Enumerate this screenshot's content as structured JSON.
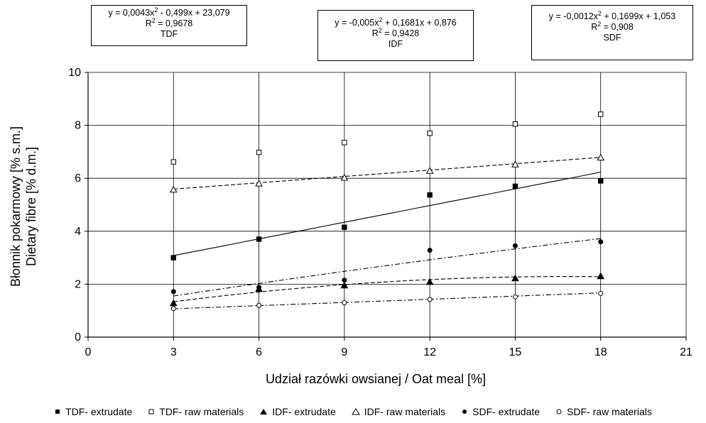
{
  "chart_data": {
    "type": "scatter",
    "xlabel": "Udział razówki owsianej / Oat meal [%]",
    "ylabel_line1": "Błonnik pokarmowy [% s.m.]",
    "ylabel_line2": "Dietary fibre [% d.m.]",
    "xlim": [
      0,
      21
    ],
    "ylim": [
      0,
      10
    ],
    "xticks": [
      "0",
      "3",
      "6",
      "9",
      "12",
      "15",
      "18",
      "21"
    ],
    "yticks": [
      "0",
      "2",
      "4",
      "6",
      "8",
      "10"
    ],
    "grid": true,
    "legend_position": "bottom",
    "series": [
      {
        "name": "TDF- extrudate",
        "marker": "square-filled",
        "x": [
          3,
          6,
          9,
          12,
          15,
          18
        ],
        "y": [
          3.0,
          3.7,
          4.15,
          5.37,
          5.7,
          5.9
        ]
      },
      {
        "name": "TDF- raw materials",
        "marker": "square-open",
        "x": [
          3,
          6,
          9,
          12,
          15,
          18
        ],
        "y": [
          6.62,
          6.98,
          7.35,
          7.7,
          8.05,
          8.42
        ]
      },
      {
        "name": "IDF- extrudate",
        "marker": "triangle-filled",
        "x": [
          3,
          6,
          9,
          12,
          15,
          18
        ],
        "y": [
          1.28,
          1.82,
          1.95,
          2.08,
          2.22,
          2.3
        ]
      },
      {
        "name": "IDF- raw materials",
        "marker": "triangle-open",
        "x": [
          3,
          6,
          9,
          12,
          15,
          18
        ],
        "y": [
          5.57,
          5.8,
          6.02,
          6.28,
          6.52,
          6.78
        ]
      },
      {
        "name": "SDF- extrudate",
        "marker": "circle-filled",
        "x": [
          3,
          6,
          9,
          12,
          15,
          18
        ],
        "y": [
          1.72,
          1.88,
          2.15,
          3.28,
          3.45,
          3.6
        ]
      },
      {
        "name": "SDF- raw materials",
        "marker": "circle-open",
        "x": [
          3,
          6,
          9,
          12,
          15,
          18
        ],
        "y": [
          1.08,
          1.2,
          1.3,
          1.42,
          1.52,
          1.65
        ]
      }
    ],
    "trendlines": [
      {
        "coef": [
          23.079,
          -0.499,
          0.0043
        ],
        "style": "solid"
      },
      {
        "coef": [
          0.876,
          0.1681,
          -0.005
        ],
        "style": "dashed"
      },
      {
        "coef": [
          1.053,
          0.1699,
          -0.0012
        ],
        "style": "dashdot"
      },
      {
        "coef": [
          2.45,
          0.21,
          0.0
        ],
        "style": "solid"
      },
      {
        "coef": [
          5.35,
          0.08,
          0.0
        ],
        "style": "dashed"
      },
      {
        "coef": [
          0.95,
          0.04,
          0.0
        ],
        "style": "dashdot"
      }
    ],
    "annotations": [
      {
        "id": "tdf",
        "eq_a": "y = 0,0043x",
        "eq_b": " - 0,499x + 23,079",
        "r2": " = 0,9678",
        "label": "TDF"
      },
      {
        "id": "idf",
        "eq_a": "y = -0,005x",
        "eq_b": " + 0,1681x + 0,876",
        "r2": " = 0,9428",
        "label": "IDF"
      },
      {
        "id": "sdf",
        "eq_a": "y = -0,0012x",
        "eq_b": " + 0,1699x + 1,053",
        "r2": " = 0,908",
        "label": "SDF"
      }
    ]
  },
  "colors": {
    "axis": "#000000",
    "grid": "#000000",
    "line": "#000000",
    "marker": "#000000",
    "background": "#ffffff"
  }
}
